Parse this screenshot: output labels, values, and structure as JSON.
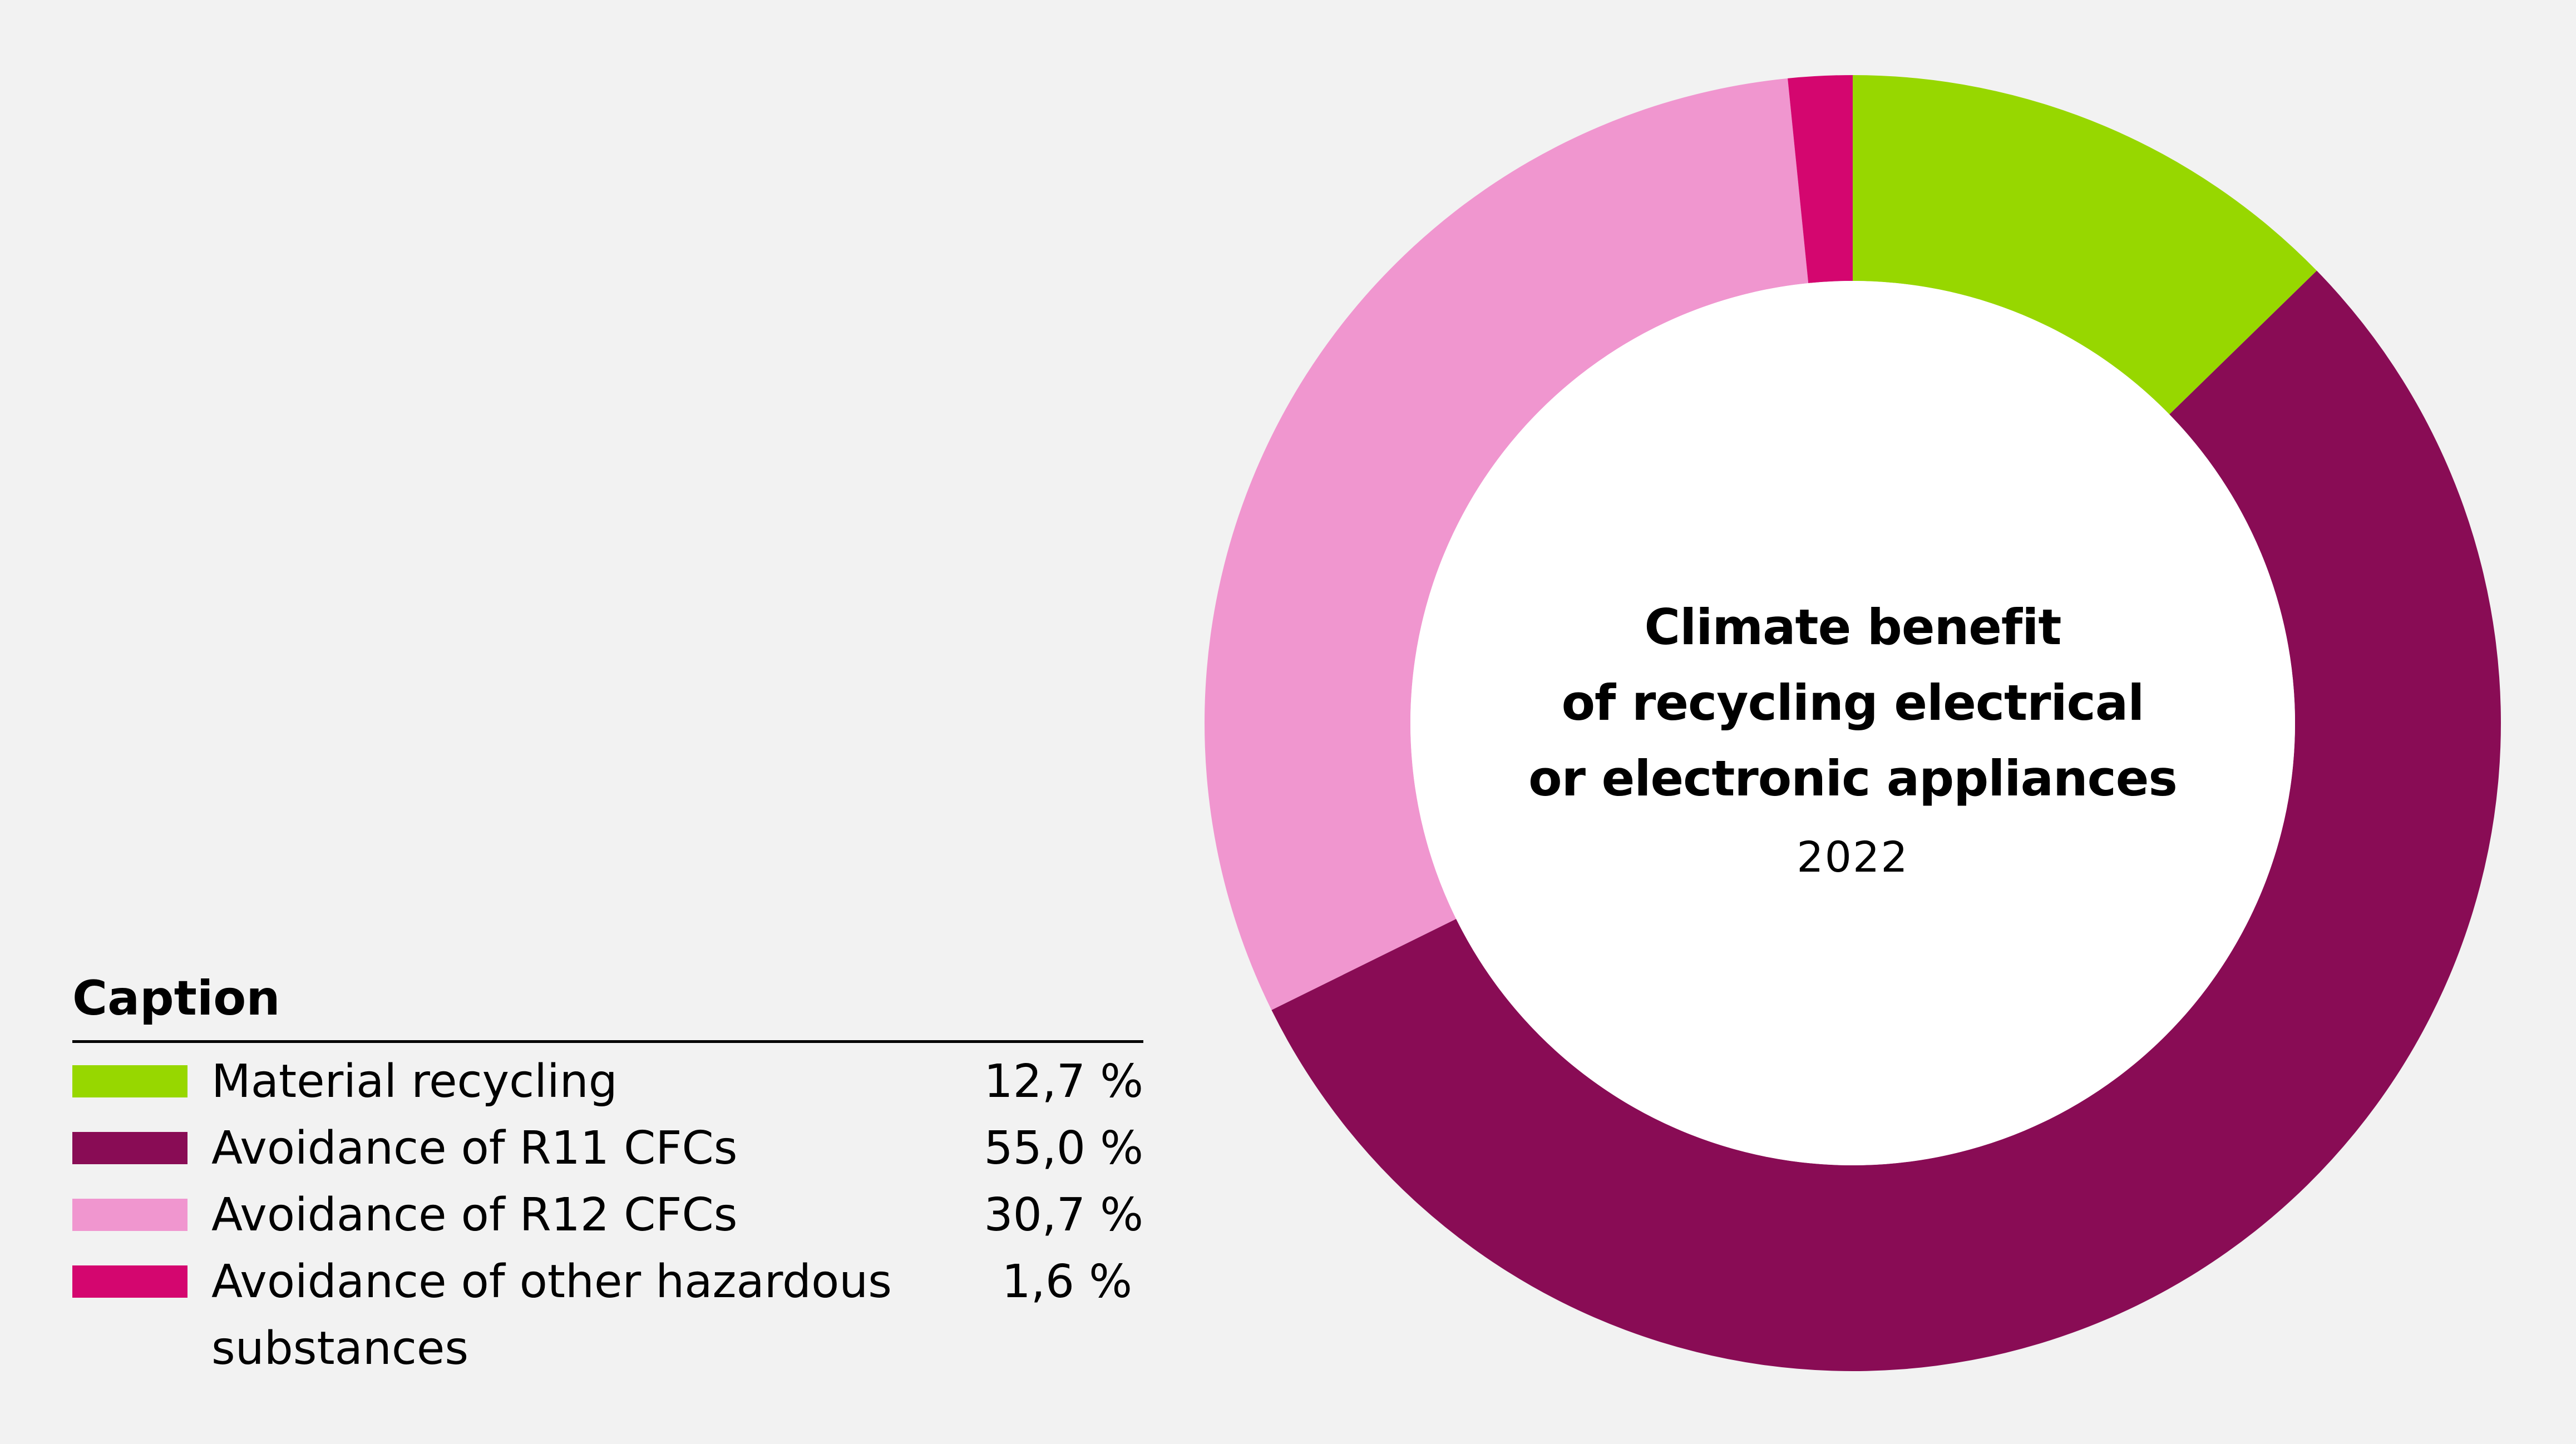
{
  "chart_data": {
    "type": "pie",
    "title_lines": [
      "Climate benefit",
      "of recycling electrical",
      "or electronic appliances"
    ],
    "subtitle": "2022",
    "legend_title": "Caption",
    "series": [
      {
        "name": "Material recycling",
        "value": 12.7,
        "label": "12,7 %",
        "color": "#97d700"
      },
      {
        "name": "Avoidance of R11 CFCs",
        "value": 55.0,
        "label": "55,0 %",
        "color": "#890c55"
      },
      {
        "name": "Avoidance of R12 CFCs",
        "value": 30.7,
        "label": "30,7 %",
        "color": "#f096cf"
      },
      {
        "name": "Avoidance of other hazardous substances",
        "value": 1.6,
        "label": "1,6 %",
        "color": "#d4066f"
      }
    ],
    "legend_position": "bottom-left"
  }
}
